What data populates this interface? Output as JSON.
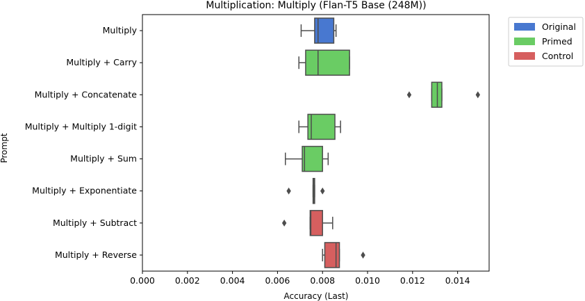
{
  "chart_data": {
    "type": "boxplot",
    "title": "Multiplication: Multiply (Flan-T5 Base (248M))",
    "xlabel": "Accuracy (Last)",
    "ylabel": "Prompt",
    "xlim": [
      0.0,
      0.0154
    ],
    "xticks": [
      "0.000",
      "0.002",
      "0.004",
      "0.006",
      "0.008",
      "0.010",
      "0.012",
      "0.014"
    ],
    "legend": {
      "placement": "outside-top-right",
      "entries": [
        {
          "name": "Original",
          "color": "#4878d0"
        },
        {
          "name": "Primed",
          "color": "#6acc64"
        },
        {
          "name": "Control",
          "color": "#d65f5f"
        }
      ]
    },
    "categories": [
      {
        "label": "Multiply",
        "group": "Original",
        "whislo": 0.00705,
        "q1": 0.00765,
        "median": 0.0078,
        "q3": 0.0085,
        "whishi": 0.0086,
        "fliers": []
      },
      {
        "label": "Multiply + Carry",
        "group": "Primed",
        "whislo": 0.00695,
        "q1": 0.00725,
        "median": 0.0078,
        "q3": 0.0092,
        "whishi": 0.0092,
        "fliers": []
      },
      {
        "label": "Multiply + Concatenate",
        "group": "Primed",
        "whislo": 0.01285,
        "q1": 0.01285,
        "median": 0.0131,
        "q3": 0.0133,
        "whishi": 0.0133,
        "fliers": [
          0.01185,
          0.0149
        ]
      },
      {
        "label": "Multiply + Multiply 1-digit",
        "group": "Primed",
        "whislo": 0.00695,
        "q1": 0.00735,
        "median": 0.0075,
        "q3": 0.00855,
        "whishi": 0.0088,
        "fliers": []
      },
      {
        "label": "Multiply + Sum",
        "group": "Primed",
        "whislo": 0.00635,
        "q1": 0.0071,
        "median": 0.0072,
        "q3": 0.008,
        "whishi": 0.00825,
        "fliers": []
      },
      {
        "label": "Multiply + Exponentiate",
        "group": "Primed",
        "whislo": 0.00758,
        "q1": 0.00758,
        "median": 0.00762,
        "q3": 0.00765,
        "whishi": 0.00765,
        "fliers": [
          0.0065,
          0.008
        ]
      },
      {
        "label": "Multiply + Subtract",
        "group": "Control",
        "whislo": 0.00745,
        "q1": 0.00745,
        "median": 0.00748,
        "q3": 0.008,
        "whishi": 0.00845,
        "fliers": [
          0.0063
        ]
      },
      {
        "label": "Multiply + Reverse",
        "group": "Control",
        "whislo": 0.008,
        "q1": 0.0081,
        "median": 0.0086,
        "q3": 0.00875,
        "whishi": 0.00875,
        "fliers": [
          0.0098
        ]
      }
    ]
  }
}
